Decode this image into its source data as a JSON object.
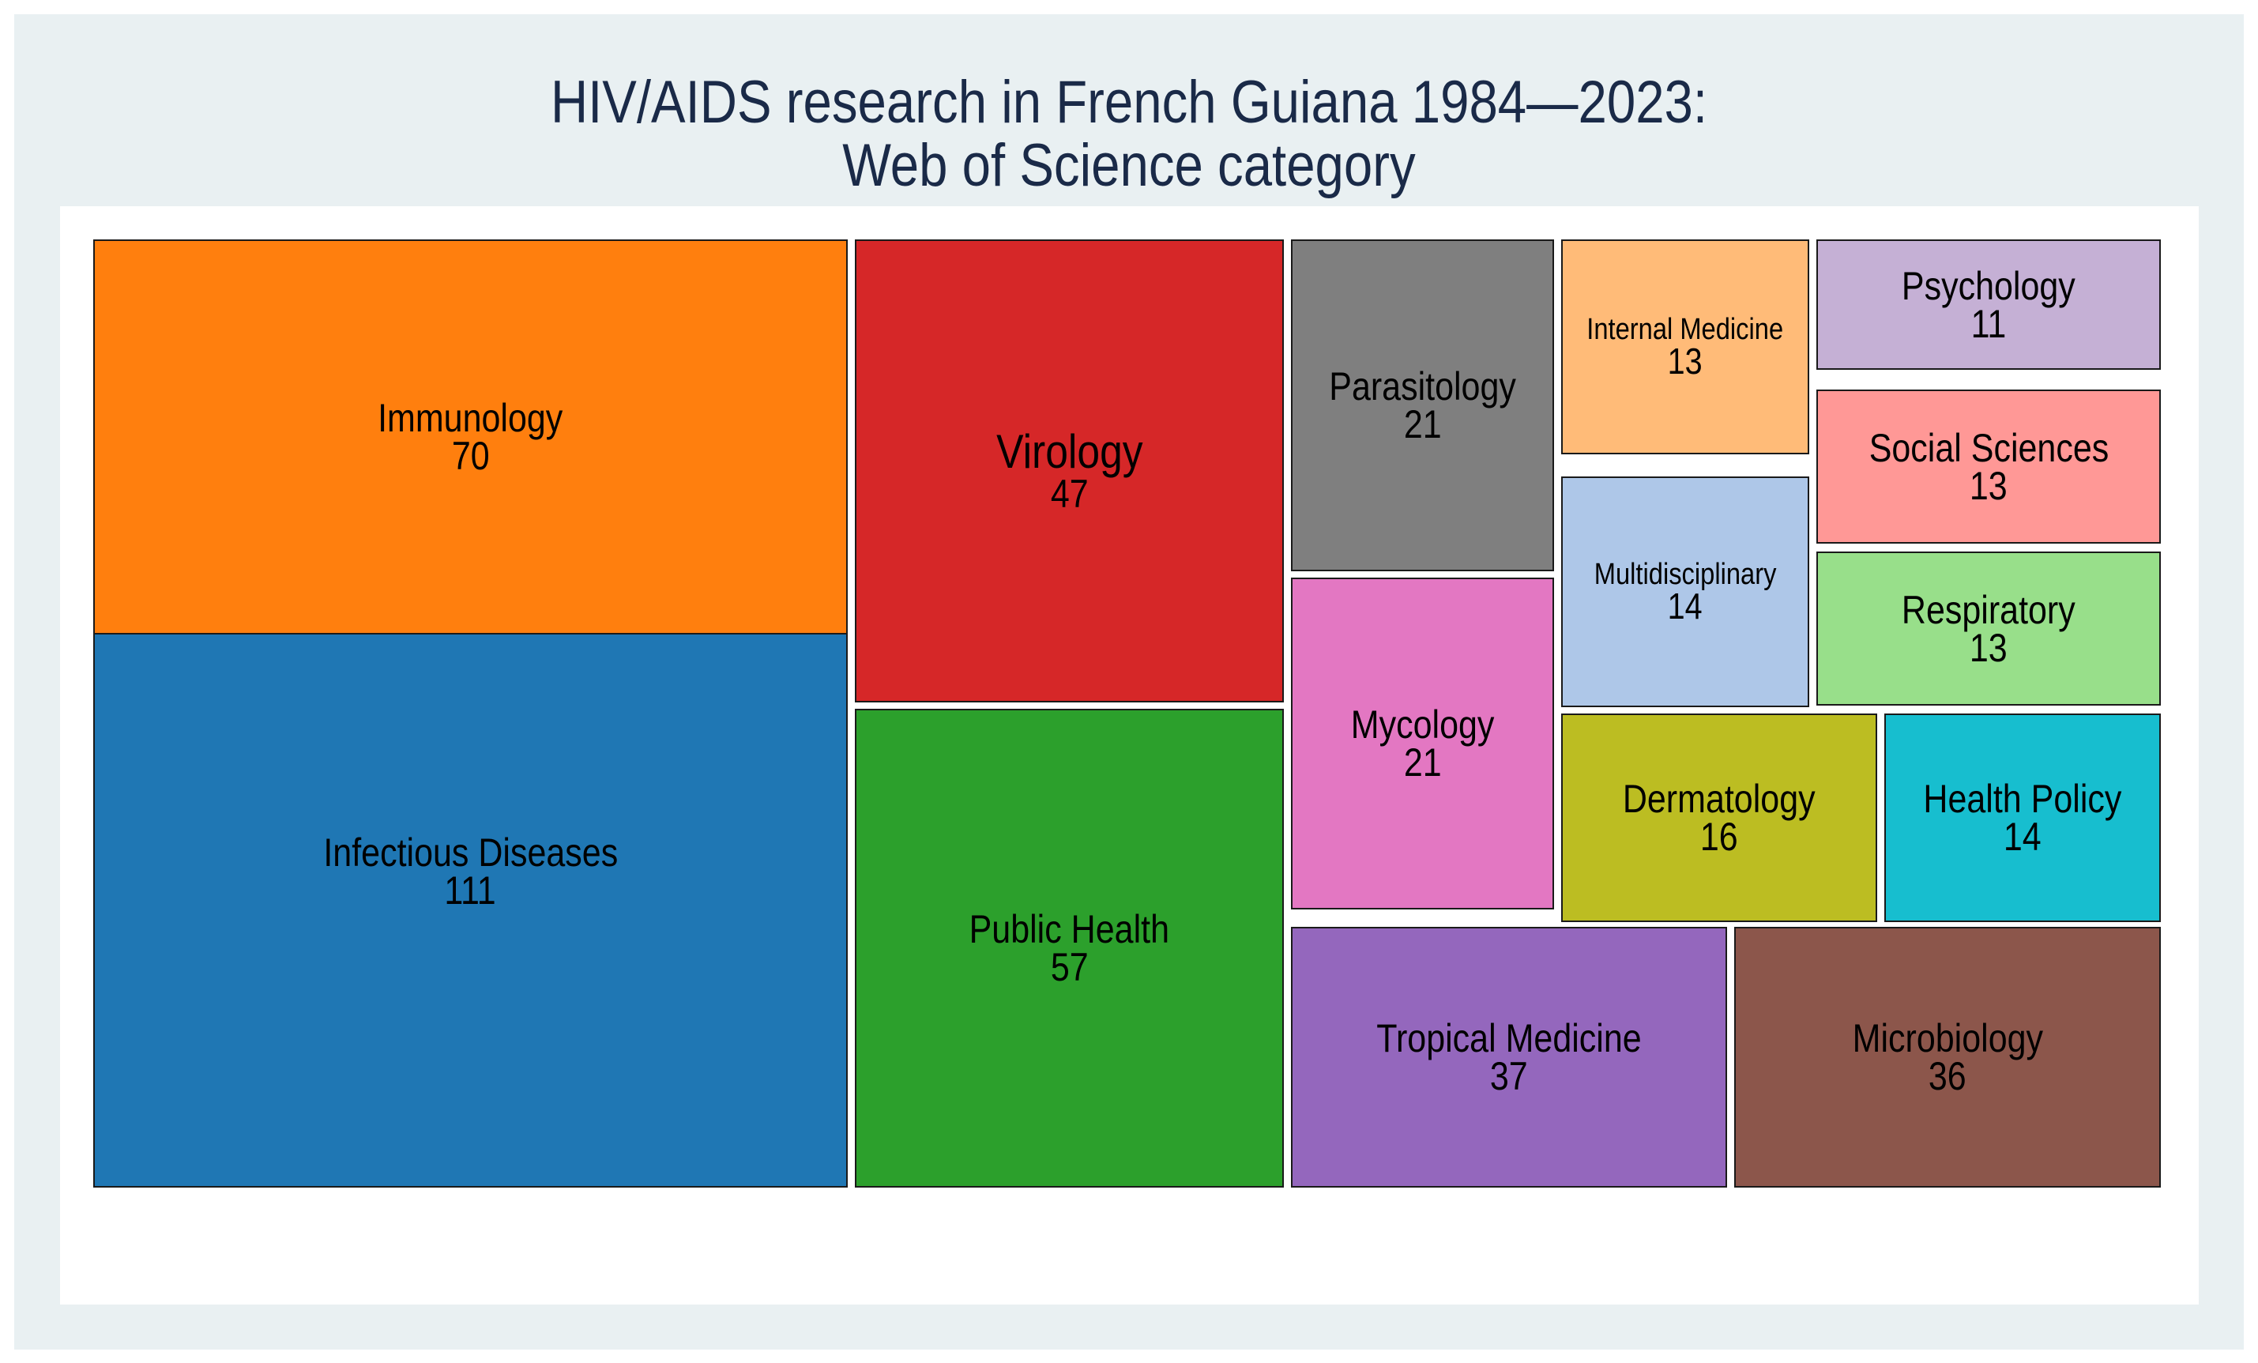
{
  "chart_data": {
    "type": "treemap",
    "title_lines": [
      "HIV/AIDS research in French Guiana 1984—2023:",
      "Web of Science category"
    ],
    "items": [
      {
        "label": "Infectious Diseases",
        "value": 111,
        "color": "#1f77b4"
      },
      {
        "label": "Immunology",
        "value": 70,
        "color": "#ff7f0e"
      },
      {
        "label": "Public Health",
        "value": 57,
        "color": "#2ca02c"
      },
      {
        "label": "Virology",
        "value": 47,
        "color": "#d62728"
      },
      {
        "label": "Tropical Medicine",
        "value": 37,
        "color": "#9467bd"
      },
      {
        "label": "Microbiology",
        "value": 36,
        "color": "#8c564b"
      },
      {
        "label": "Parasitology",
        "value": 21,
        "color": "#7f7f7f"
      },
      {
        "label": "Mycology",
        "value": 21,
        "color": "#e377c2"
      },
      {
        "label": "Dermatology",
        "value": 16,
        "color": "#bcbd22"
      },
      {
        "label": "Health Policy",
        "value": 14,
        "color": "#17becf"
      },
      {
        "label": "Multidisciplinary",
        "value": 14,
        "color": "#aec7e8"
      },
      {
        "label": "Internal Medicine",
        "value": 13,
        "color": "#ffbb78"
      },
      {
        "label": "Social Sciences",
        "value": 13,
        "color": "#ff9896"
      },
      {
        "label": "Respiratory",
        "value": 13,
        "color": "#98df8a"
      },
      {
        "label": "Psychology",
        "value": 11,
        "color": "#c5b0d5"
      }
    ]
  }
}
